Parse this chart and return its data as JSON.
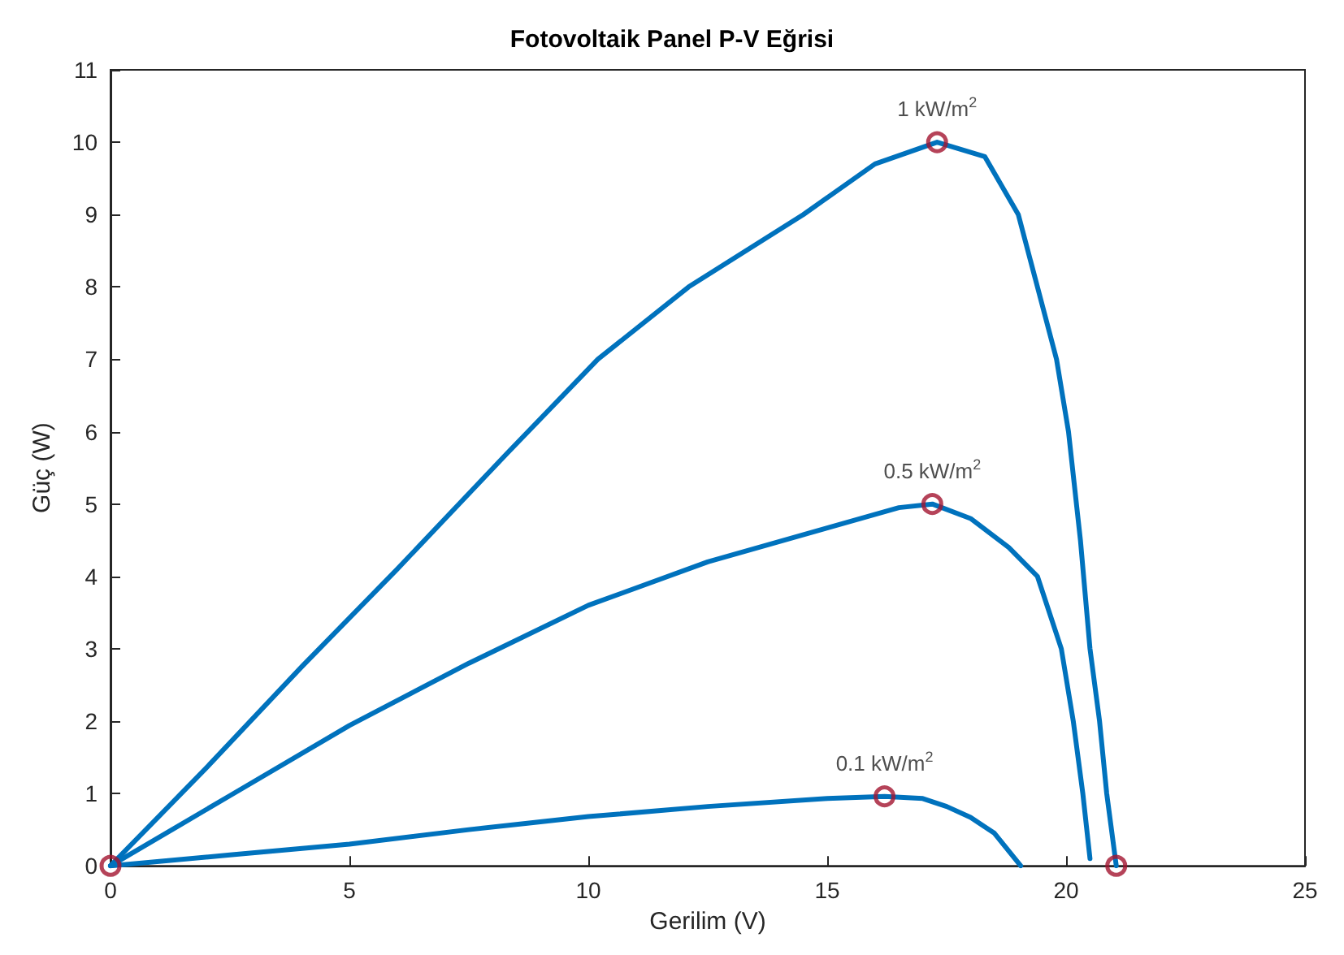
{
  "chart_data": {
    "type": "line",
    "title": "Fotovoltaik Panel P-V Eğrisi",
    "xlabel": "Gerilim (V)",
    "ylabel": "Güç (W)",
    "xlim": [
      0,
      25
    ],
    "xticks": [
      0,
      5,
      10,
      15,
      20,
      25
    ],
    "ylim": [
      0,
      11
    ],
    "yticks": [
      0,
      1,
      2,
      3,
      4,
      5,
      6,
      7,
      8,
      9,
      10,
      11
    ],
    "grid": false,
    "marker": "none",
    "line_style": "solid",
    "series": [
      {
        "color": "#0072bd",
        "x": [
          0,
          2,
          4,
          6,
          8.3,
          10.2,
          12.1,
          14.5,
          16,
          17.3,
          18.3,
          19,
          19.4,
          19.8,
          20.05,
          20.3,
          20.5,
          20.7,
          20.85,
          21.05
        ],
        "values": [
          0,
          1.35,
          2.75,
          4.1,
          5.7,
          7,
          8,
          9,
          9.7,
          10,
          9.8,
          9,
          8,
          7,
          6,
          4.5,
          3,
          2,
          1,
          0
        ]
      },
      {
        "color": "#0072bd",
        "x": [
          0,
          2.5,
          5,
          7.5,
          10,
          12.5,
          15,
          16.5,
          17.2,
          18,
          18.8,
          19.4,
          19.9,
          20.15,
          20.35,
          20.5
        ],
        "values": [
          0,
          0.97,
          1.94,
          2.8,
          3.6,
          4.2,
          4.67,
          4.95,
          5,
          4.8,
          4.4,
          4,
          3,
          2,
          1,
          0.1
        ]
      },
      {
        "color": "#0072bd",
        "x": [
          0,
          2.5,
          5,
          7.5,
          10,
          12.5,
          15,
          16.2,
          17,
          17.5,
          18,
          18.5,
          19.05
        ],
        "values": [
          0,
          0.15,
          0.3,
          0.5,
          0.68,
          0.82,
          0.93,
          0.96,
          0.93,
          0.82,
          0.67,
          0.45,
          0
        ]
      },
      {
        "type": "scatter",
        "marker": "circle",
        "color": "#a2142f",
        "x": [
          0,
          17.3,
          17.2,
          16.2,
          21.05
        ],
        "values": [
          0,
          10,
          5,
          0.96,
          0
        ]
      }
    ],
    "annotations": [
      {
        "text": "1 kW/m$^{2}$",
        "x": 17.3,
        "y": 10
      },
      {
        "text": "0.5 kW/m$^{2}$",
        "x": 17.2,
        "y": 5
      },
      {
        "text": "0.1 kW/m$^{2}$",
        "x": 16.2,
        "y": 0.96
      }
    ]
  }
}
